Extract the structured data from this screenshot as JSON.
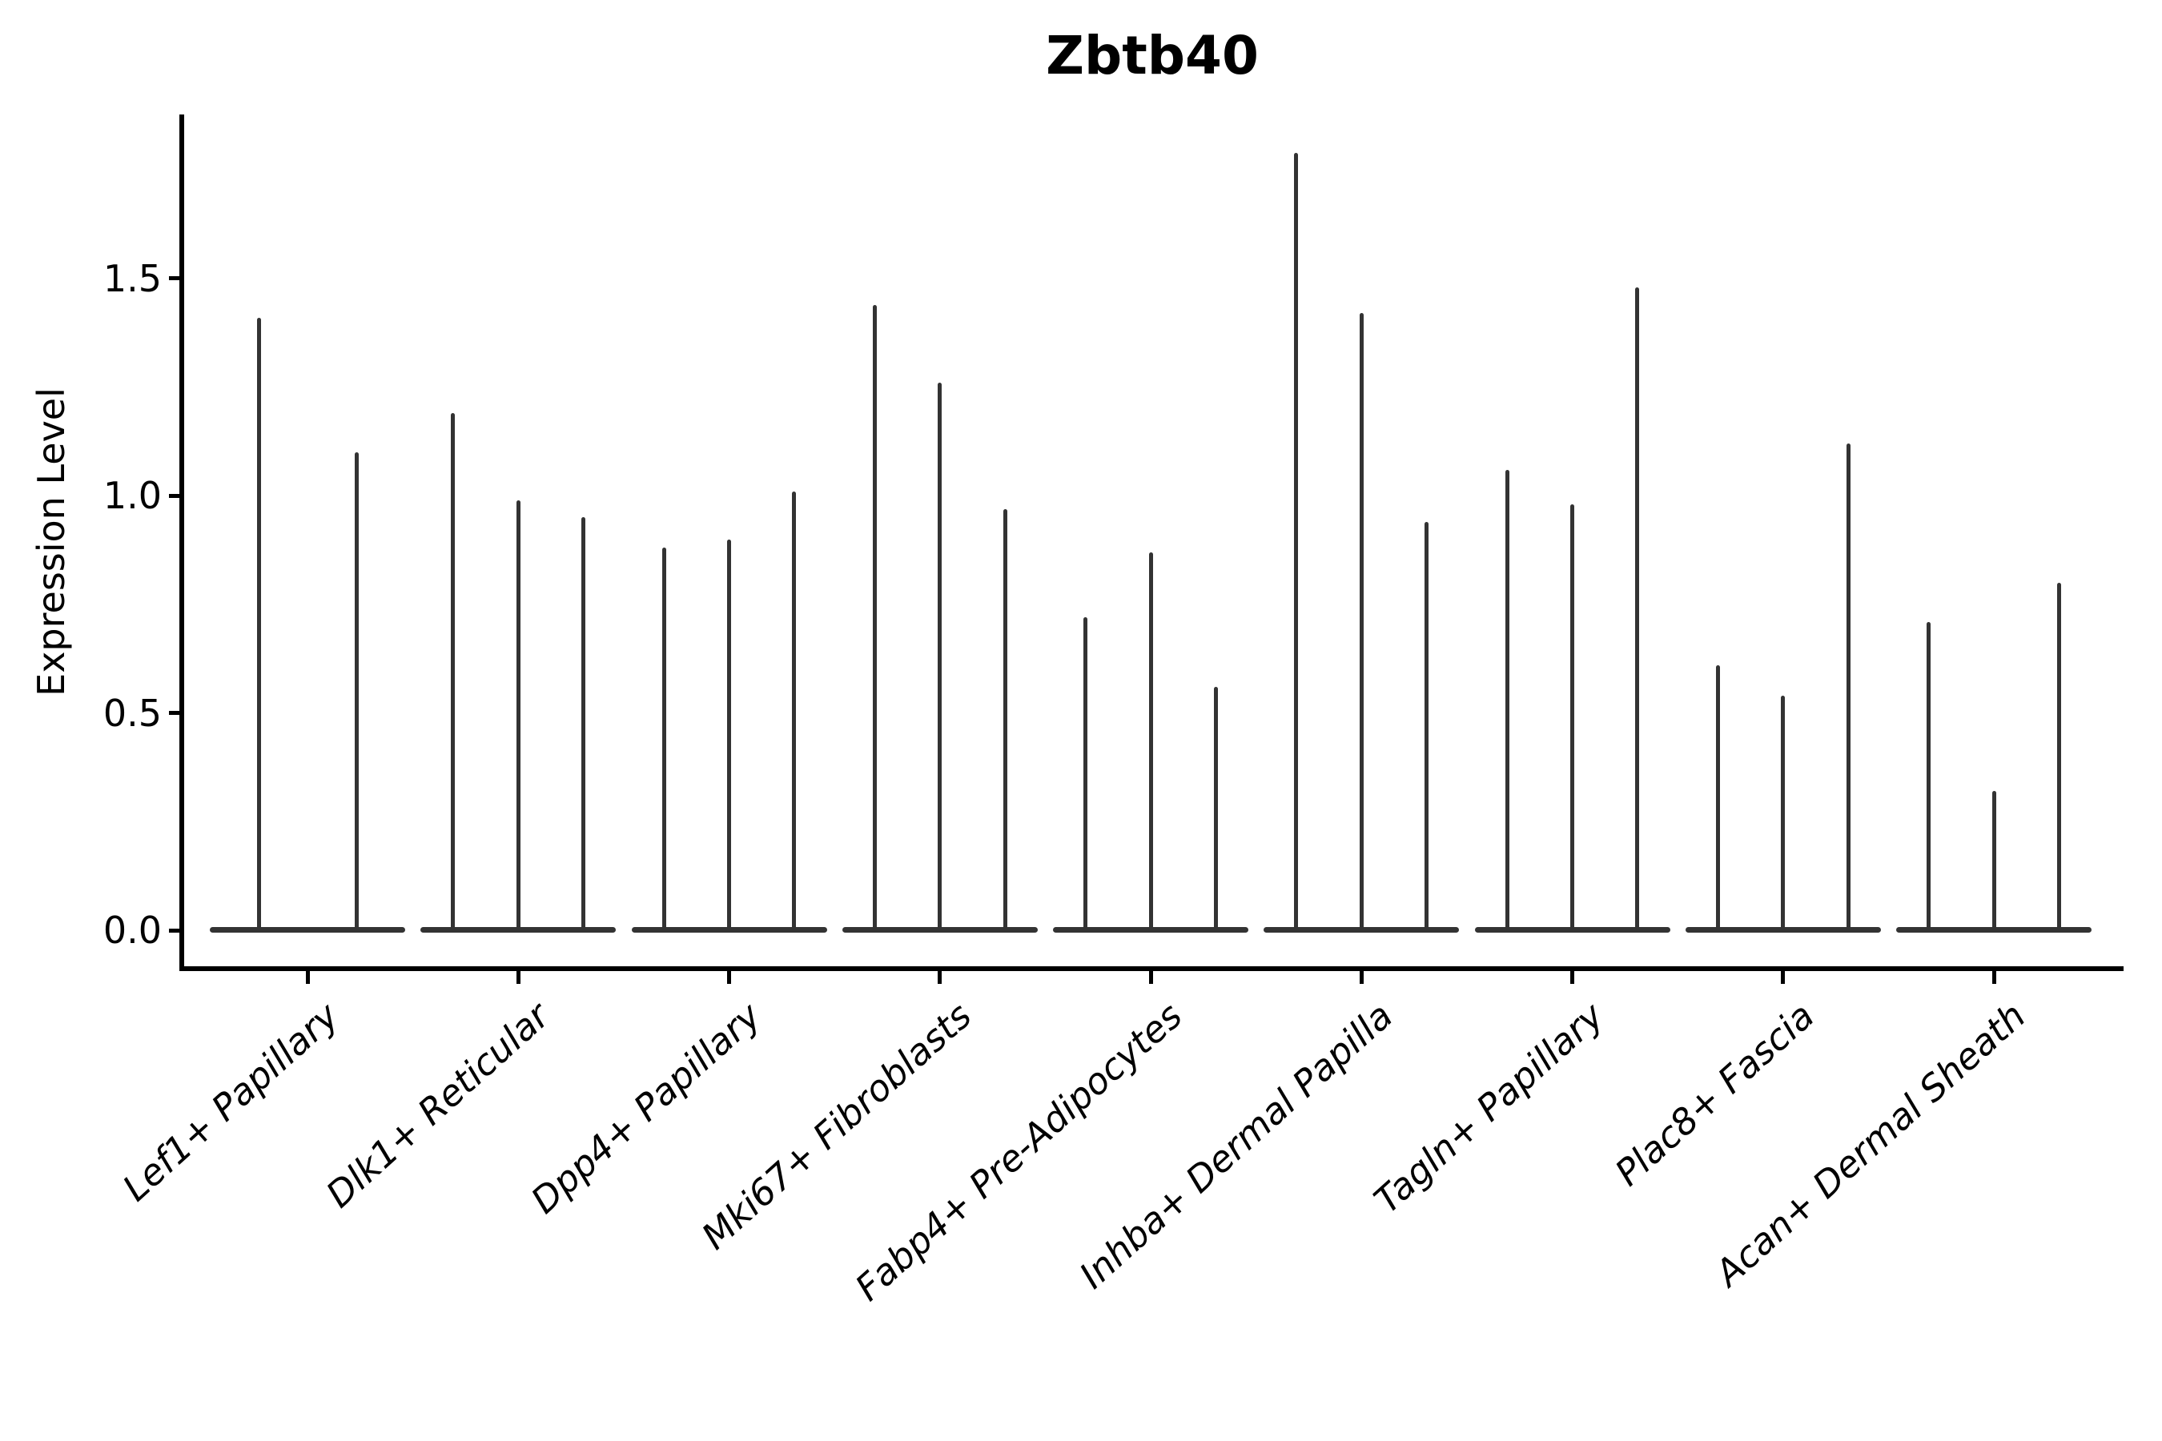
{
  "title": "Zbtb40",
  "y_axis": {
    "label": "Expression Level",
    "tick_labels": [
      "0.0",
      "0.5",
      "1.0",
      "1.5"
    ]
  },
  "colors": {
    "violin": "#333333",
    "spine": "#000000",
    "text": "#000000",
    "background": "#ffffff"
  },
  "chart_data": {
    "type": "violin",
    "title": "Zbtb40",
    "xlabel": "",
    "ylabel": "Expression Level",
    "yticks": [
      0.0,
      0.5,
      1.0,
      1.5
    ],
    "ylim": [
      -0.09,
      1.88
    ],
    "grid": false,
    "legend": false,
    "style_note": "needle-thin black violins: flat body at expression 0 with a thin vertical spike up to the max expression value; no top/right spines; x labels rotated ~42deg italic",
    "categories": [
      "Lef1+ Papillary",
      "Dlk1+ Reticular",
      "Dpp4+ Papillary",
      "Mki67+ Fibroblasts",
      "Fabp4+ Pre-Adipocytes",
      "Inhba+ Dermal Papilla",
      "Tagln+ Papillary",
      "Plac8+ Fascia",
      "Acan+ Dermal Sheath"
    ],
    "series": [
      {
        "category": "Lef1+ Papillary",
        "spike_maxima": [
          1.41,
          1.1
        ]
      },
      {
        "category": "Dlk1+ Reticular",
        "spike_maxima": [
          1.19,
          0.99,
          0.95
        ]
      },
      {
        "category": "Dpp4+ Papillary",
        "spike_maxima": [
          0.88,
          0.9,
          1.01
        ]
      },
      {
        "category": "Mki67+ Fibroblasts",
        "spike_maxima": [
          1.44,
          1.26,
          0.97
        ]
      },
      {
        "category": "Fabp4+ Pre-Adipocytes",
        "spike_maxima": [
          0.72,
          0.87,
          0.56
        ]
      },
      {
        "category": "Inhba+ Dermal Papilla",
        "spike_maxima": [
          1.79,
          1.42,
          0.94
        ]
      },
      {
        "category": "Tagln+ Papillary",
        "spike_maxima": [
          1.06,
          0.98,
          1.48
        ]
      },
      {
        "category": "Plac8+ Fascia",
        "spike_maxima": [
          0.61,
          0.54,
          1.12
        ]
      },
      {
        "category": "Acan+ Dermal Sheath",
        "spike_maxima": [
          0.71,
          0.32,
          0.8
        ]
      }
    ]
  }
}
